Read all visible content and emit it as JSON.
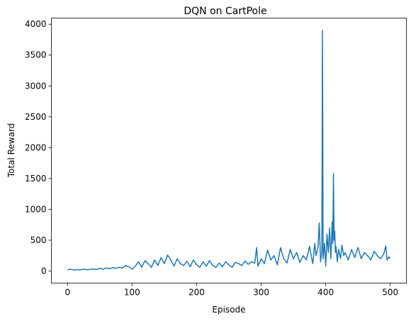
{
  "chart_data": {
    "type": "line",
    "title": "DQN on CartPole",
    "xlabel": "Episode",
    "ylabel": "Total Reward",
    "xlim": [
      -25,
      525
    ],
    "ylim": [
      -195,
      4100
    ],
    "xticks": [
      0,
      100,
      200,
      300,
      400,
      500
    ],
    "yticks": [
      0,
      500,
      1000,
      1500,
      2000,
      2500,
      3000,
      3500,
      4000
    ],
    "grid": false,
    "line_color": "#1f77b4",
    "series": [
      {
        "x": [
          0,
          5,
          10,
          15,
          20,
          25,
          30,
          35,
          40,
          45,
          50,
          55,
          60,
          65,
          70,
          75,
          80,
          85,
          90,
          95,
          100,
          105,
          110,
          115,
          120,
          125,
          130,
          135,
          140,
          145,
          150,
          155,
          160,
          165,
          170,
          175,
          180,
          185,
          190,
          195,
          200,
          205,
          210,
          215,
          220,
          225,
          230,
          235,
          240,
          245,
          250,
          255,
          260,
          265,
          270,
          275,
          280,
          285,
          290,
          293,
          295,
          298,
          300,
          305,
          310,
          315,
          320,
          325,
          330,
          335,
          340,
          345,
          350,
          355,
          360,
          365,
          370,
          375,
          378,
          380,
          383,
          385,
          388,
          390,
          392,
          394,
          395,
          396,
          398,
          400,
          402,
          404,
          406,
          408,
          410,
          411,
          412,
          413,
          414,
          415,
          416,
          418,
          420,
          423,
          425,
          428,
          430,
          435,
          440,
          445,
          450,
          455,
          460,
          465,
          470,
          475,
          480,
          485,
          490,
          493,
          495,
          498,
          500
        ],
        "values": [
          20,
          30,
          15,
          25,
          18,
          30,
          22,
          28,
          35,
          25,
          45,
          30,
          50,
          40,
          55,
          45,
          60,
          50,
          90,
          70,
          30,
          80,
          150,
          60,
          170,
          120,
          60,
          180,
          90,
          220,
          120,
          260,
          180,
          80,
          200,
          120,
          90,
          160,
          70,
          180,
          100,
          60,
          150,
          80,
          170,
          90,
          60,
          130,
          70,
          150,
          100,
          60,
          140,
          120,
          90,
          160,
          110,
          150,
          130,
          380,
          80,
          150,
          200,
          120,
          340,
          180,
          250,
          100,
          380,
          200,
          130,
          350,
          200,
          300,
          140,
          250,
          180,
          400,
          220,
          120,
          450,
          250,
          380,
          780,
          150,
          300,
          3900,
          200,
          450,
          80,
          600,
          300,
          700,
          200,
          800,
          450,
          1580,
          500,
          650,
          300,
          400,
          150,
          350,
          200,
          420,
          250,
          300,
          180,
          350,
          220,
          380,
          200,
          300,
          250,
          180,
          320,
          250,
          200,
          280,
          410,
          180,
          230,
          200
        ]
      }
    ]
  }
}
